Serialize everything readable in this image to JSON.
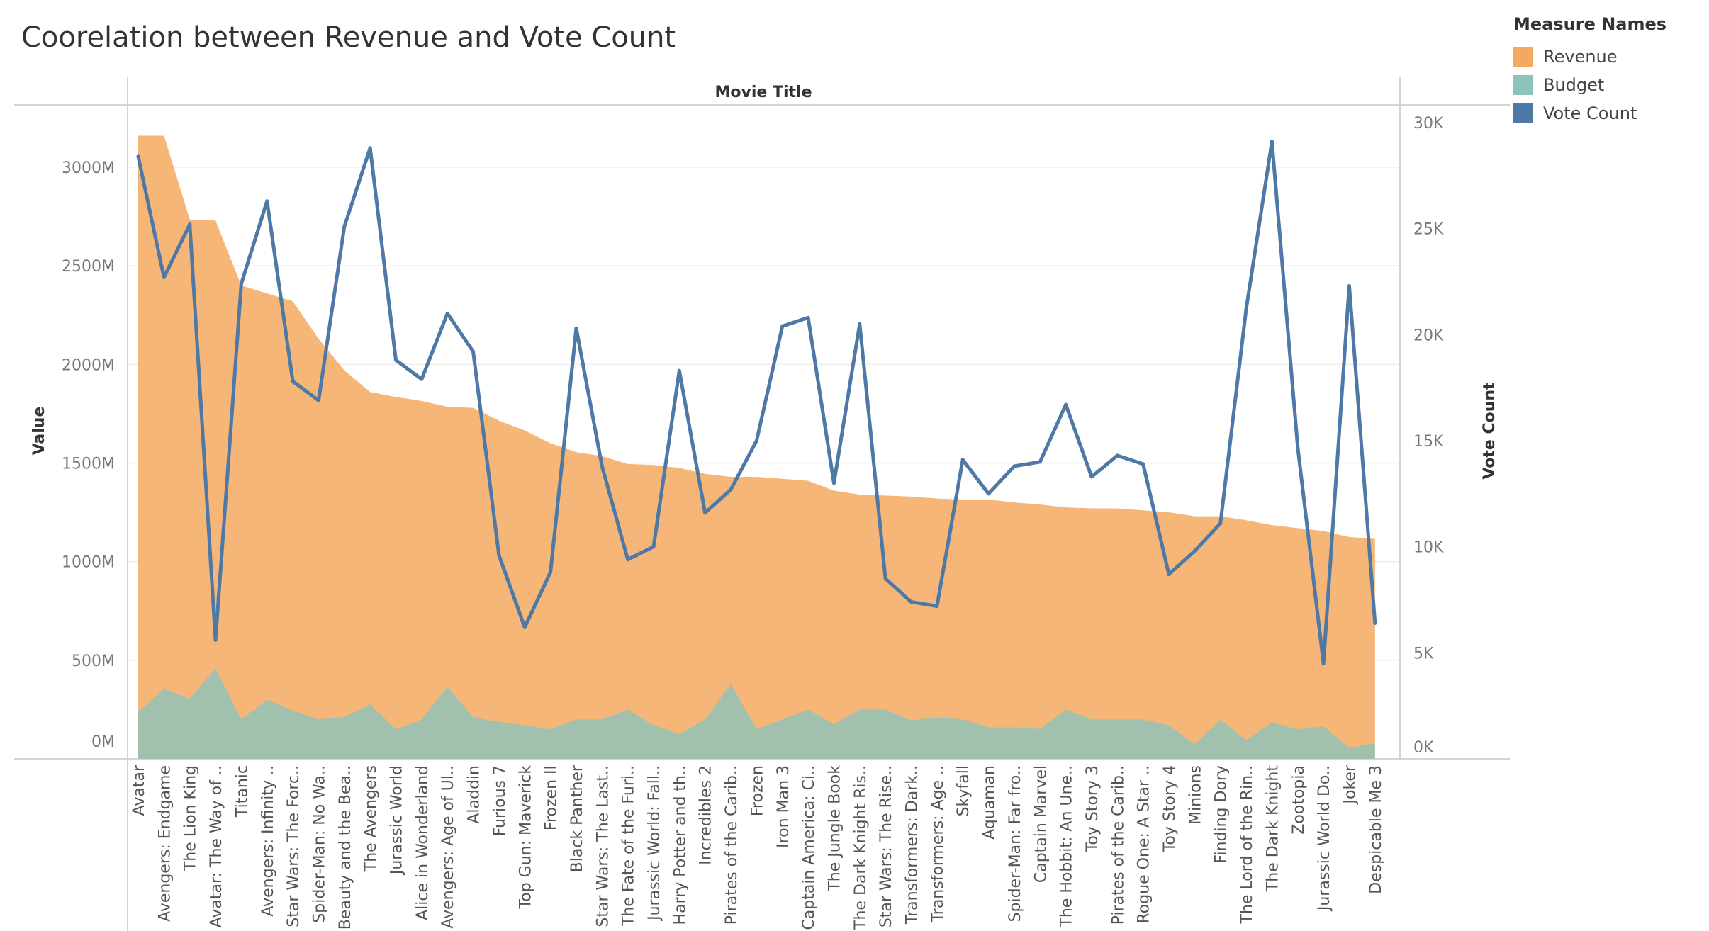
{
  "chart_data": {
    "type": "area",
    "title": "Coorelation between Revenue and Vote Count",
    "header_label": "Movie Title",
    "ylabel_left": "Value",
    "ylabel_right": "Vote Count",
    "ylim_left": [
      0,
      3250
    ],
    "ylim_right": [
      0,
      30000
    ],
    "ticks_left": [
      {
        "value": 0,
        "label": "0M"
      },
      {
        "value": 500,
        "label": "500M"
      },
      {
        "value": 1000,
        "label": "1000M"
      },
      {
        "value": 1500,
        "label": "1500M"
      },
      {
        "value": 2000,
        "label": "2000M"
      },
      {
        "value": 2500,
        "label": "2500M"
      },
      {
        "value": 3000,
        "label": "3000M"
      }
    ],
    "ticks_right": [
      {
        "value": 0,
        "label": "0K"
      },
      {
        "value": 5000,
        "label": "5K"
      },
      {
        "value": 10000,
        "label": "10K"
      },
      {
        "value": 15000,
        "label": "15K"
      },
      {
        "value": 20000,
        "label": "20K"
      },
      {
        "value": 25000,
        "label": "25K"
      },
      {
        "value": 30000,
        "label": "30K"
      }
    ],
    "legend_title": "Measure Names",
    "legend": [
      {
        "name": "Revenue",
        "color": "#f5a95f"
      },
      {
        "name": "Budget",
        "color": "#8cc4bc"
      },
      {
        "name": "Vote Count",
        "color": "#4e79a7"
      }
    ],
    "categories": [
      "Avatar",
      "Avengers: Endgame",
      "The Lion King",
      "Avatar: The Way of ..",
      "Titanic",
      "Avengers: Infinity ..",
      "Star Wars: The Forc..",
      "Spider-Man: No Wa..",
      "Beauty and the Bea..",
      "The Avengers",
      "Jurassic World",
      "Alice in Wonderland",
      "Avengers: Age of Ul..",
      "Aladdin",
      "Furious 7",
      "Top Gun: Maverick",
      "Frozen II",
      "Black Panther",
      "Star Wars: The Last..",
      "The Fate of the Furi..",
      "Jurassic World: Fall..",
      "Harry Potter and th..",
      "Incredibles 2",
      "Pirates of the Carib..",
      "Frozen",
      "Iron Man 3",
      "Captain America: Ci..",
      "The Jungle Book",
      "The Dark Knight Ris..",
      "Star Wars: The Rise..",
      "Transformers: Dark..",
      "Transformers: Age ..",
      "Skyfall",
      "Aquaman",
      "Spider-Man: Far fro..",
      "Captain Marvel",
      "The Hobbit: An Une..",
      "Toy Story 3",
      "Pirates of the Carib..",
      "Rogue One: A Star ..",
      "Toy Story 4",
      "Minions",
      "Finding Dory",
      "The Lord of the Rin..",
      "The Dark Knight",
      "Zootopia",
      "Jurassic World Do..",
      "Joker",
      "Despicable Me 3"
    ],
    "series": [
      {
        "name": "Revenue",
        "axis": "left",
        "values": [
          3160,
          3160,
          2735,
          2730,
          2400,
          2360,
          2320,
          2130,
          1970,
          1860,
          1835,
          1815,
          1785,
          1780,
          1715,
          1665,
          1600,
          1555,
          1535,
          1495,
          1490,
          1475,
          1445,
          1430,
          1430,
          1420,
          1410,
          1360,
          1340,
          1335,
          1330,
          1320,
          1315,
          1315,
          1300,
          1290,
          1275,
          1270,
          1270,
          1260,
          1250,
          1230,
          1230,
          1210,
          1185,
          1170,
          1155,
          1125,
          1115
        ]
      },
      {
        "name": "Budget",
        "axis": "left",
        "values": [
          237,
          356,
          304,
          460,
          200,
          300,
          245,
          200,
          212,
          276,
          150,
          200,
          365,
          210,
          188,
          170,
          150,
          200,
          200,
          250,
          170,
          125,
          200,
          379,
          150,
          200,
          250,
          175,
          250,
          250,
          195,
          210,
          200,
          160,
          160,
          152,
          250,
          200,
          200,
          200,
          170,
          74,
          200,
          94,
          185,
          150,
          165,
          55,
          80
        ]
      },
      {
        "name": "Vote Count",
        "axis": "right",
        "values": [
          28400,
          22700,
          25200,
          5600,
          22400,
          26300,
          17800,
          16900,
          25100,
          28800,
          18800,
          17900,
          21000,
          19200,
          9600,
          6200,
          8800,
          20300,
          13800,
          9400,
          10000,
          18300,
          11600,
          12700,
          15000,
          20400,
          20800,
          13000,
          20500,
          8500,
          7400,
          7200,
          14100,
          12500,
          13800,
          14000,
          16700,
          13300,
          14300,
          13900,
          8700,
          9800,
          11100,
          21200,
          29100,
          14700,
          4500,
          22300,
          6400
        ]
      }
    ]
  }
}
